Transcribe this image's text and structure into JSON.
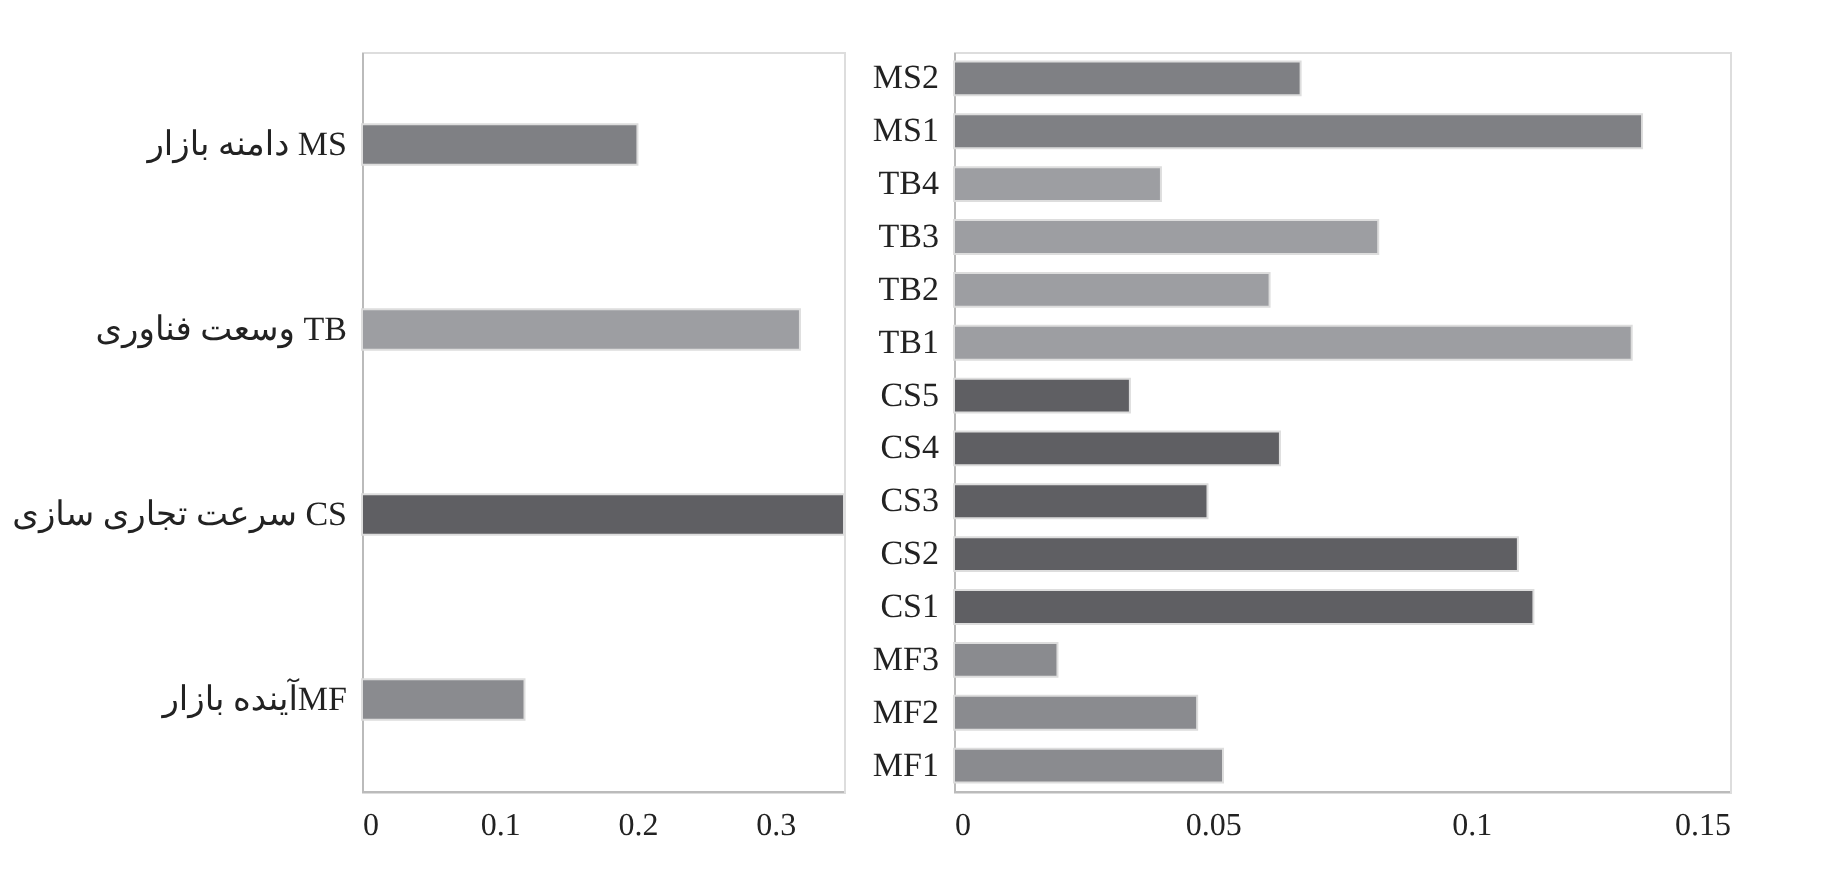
{
  "chart_data": [
    {
      "type": "bar",
      "orientation": "horizontal",
      "categories": [
        "دامنه بازار MS",
        "وسعت فناوری TB",
        "سرعت تجاری سازی CS",
        "آینده بازارMF"
      ],
      "values": [
        0.2,
        0.318,
        0.35,
        0.118
      ],
      "colors": [
        "#7f8084",
        "#9d9ea2",
        "#5f5f63",
        "#8a8b8f"
      ],
      "xlim": [
        0,
        0.35
      ],
      "xticks": [
        0,
        0.1,
        0.2,
        0.3
      ],
      "grid": false
    },
    {
      "type": "bar",
      "orientation": "horizontal",
      "categories": [
        "MS2",
        "MS1",
        "TB4",
        "TB3",
        "TB2",
        "TB1",
        "CS5",
        "CS4",
        "CS3",
        "CS2",
        "CS1",
        "MF3",
        "MF2",
        "MF1"
      ],
      "values": [
        0.067,
        0.133,
        0.04,
        0.082,
        0.061,
        0.131,
        0.034,
        0.063,
        0.049,
        0.109,
        0.112,
        0.02,
        0.047,
        0.052
      ],
      "colors": [
        "#7f8084",
        "#7f8084",
        "#9d9ea2",
        "#9d9ea2",
        "#9d9ea2",
        "#9d9ea2",
        "#5f5f63",
        "#5f5f63",
        "#5f5f63",
        "#5f5f63",
        "#5f5f63",
        "#8a8b8f",
        "#8a8b8f",
        "#8a8b8f"
      ],
      "xlim": [
        0,
        0.15
      ],
      "xticks": [
        0,
        0.05,
        0.1,
        0.15
      ],
      "grid": false
    }
  ]
}
